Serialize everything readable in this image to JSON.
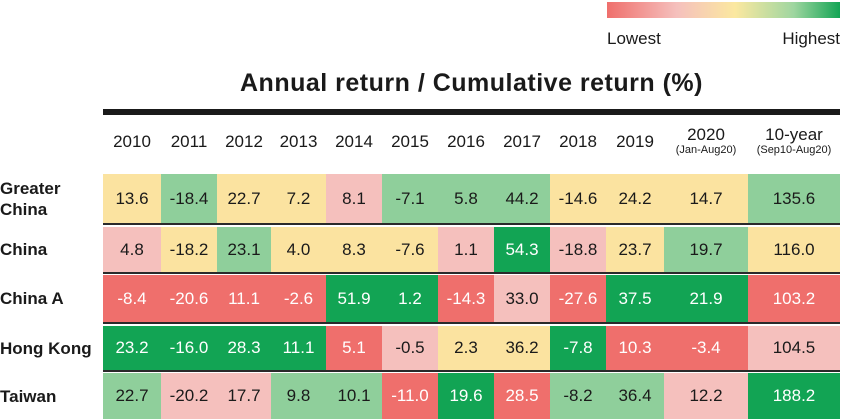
{
  "legend": {
    "low_label": "Lowest",
    "high_label": "Highest"
  },
  "chart_data": {
    "type": "table",
    "title": "Annual return / Cumulative return (%)",
    "columns": [
      {
        "label": "2010",
        "sub": ""
      },
      {
        "label": "2011",
        "sub": ""
      },
      {
        "label": "2012",
        "sub": ""
      },
      {
        "label": "2013",
        "sub": ""
      },
      {
        "label": "2014",
        "sub": ""
      },
      {
        "label": "2015",
        "sub": ""
      },
      {
        "label": "2016",
        "sub": ""
      },
      {
        "label": "2017",
        "sub": ""
      },
      {
        "label": "2018",
        "sub": ""
      },
      {
        "label": "2019",
        "sub": ""
      },
      {
        "label": "2020",
        "sub": "(Jan-Aug20)"
      },
      {
        "label": "10-year",
        "sub": "(Sep10-Aug20)"
      }
    ],
    "rows": [
      {
        "label": "Greater China",
        "values": [
          "13.6",
          "-18.4",
          "22.7",
          "7.2",
          "8.1",
          "-7.1",
          "5.8",
          "44.2",
          "-14.6",
          "24.2",
          "14.7",
          "135.6"
        ],
        "colors": [
          "#fbe3a0",
          "#8fcf9b",
          "#fbe3a0",
          "#fbe3a0",
          "#f5c0bd",
          "#8fcf9b",
          "#8fcf9b",
          "#8fcf9b",
          "#fbe3a0",
          "#fbe3a0",
          "#fbe3a0",
          "#8fcf9b"
        ]
      },
      {
        "label": "China",
        "values": [
          "4.8",
          "-18.2",
          "23.1",
          "4.0",
          "8.3",
          "-7.6",
          "1.1",
          "54.3",
          "-18.8",
          "23.7",
          "19.7",
          "116.0"
        ],
        "colors": [
          "#f5c0bd",
          "#fbe3a0",
          "#8fcf9b",
          "#fbe3a0",
          "#fbe3a0",
          "#fbe3a0",
          "#f5c0bd",
          "#12a454",
          "#f5c0bd",
          "#fbe3a0",
          "#8fcf9b",
          "#fbe3a0"
        ]
      },
      {
        "label": "China A",
        "values": [
          "-8.4",
          "-20.6",
          "11.1",
          "-2.6",
          "51.9",
          "1.2",
          "-14.3",
          "33.0",
          "-27.6",
          "37.5",
          "21.9",
          "103.2"
        ],
        "colors": [
          "#ef6f6c",
          "#ef6f6c",
          "#ef6f6c",
          "#ef6f6c",
          "#12a454",
          "#12a454",
          "#ef6f6c",
          "#f5c0bd",
          "#ef6f6c",
          "#12a454",
          "#12a454",
          "#ef6f6c"
        ]
      },
      {
        "label": "Hong Kong",
        "values": [
          "23.2",
          "-16.0",
          "28.3",
          "11.1",
          "5.1",
          "-0.5",
          "2.3",
          "36.2",
          "-7.8",
          "10.3",
          "-3.4",
          "104.5"
        ],
        "colors": [
          "#12a454",
          "#12a454",
          "#12a454",
          "#12a454",
          "#ef6f6c",
          "#f5c0bd",
          "#fbe3a0",
          "#fbe3a0",
          "#12a454",
          "#ef6f6c",
          "#ef6f6c",
          "#f5c0bd"
        ]
      },
      {
        "label": "Taiwan",
        "values": [
          "22.7",
          "-20.2",
          "17.7",
          "9.8",
          "10.1",
          "-11.0",
          "19.6",
          "28.5",
          "-8.2",
          "36.4",
          "12.2",
          "188.2"
        ],
        "colors": [
          "#8fcf9b",
          "#f5c0bd",
          "#f5c0bd",
          "#8fcf9b",
          "#8fcf9b",
          "#ef6f6c",
          "#12a454",
          "#ef6f6c",
          "#8fcf9b",
          "#8fcf9b",
          "#f5c0bd",
          "#12a454"
        ]
      }
    ],
    "dark_text_colors": [
      "#ef6f6c",
      "#12a454"
    ]
  }
}
